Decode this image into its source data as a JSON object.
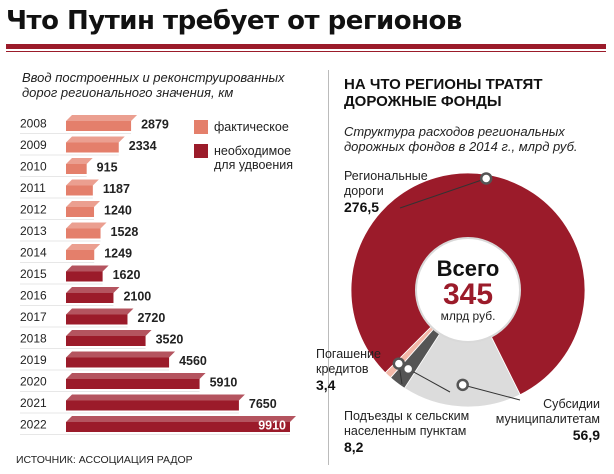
{
  "title": "Что Путин требует от регионов",
  "left": {
    "subtitle_line1": "Ввод построенных и реконструированных",
    "subtitle_line2": "дорог регионального значения, км",
    "legend": {
      "actual": "фактическое",
      "required_line1": "необходимое",
      "required_line2": "для удвоения"
    }
  },
  "right": {
    "heading_line1": "НА ЧТО РЕГИОНЫ ТРАТЯТ",
    "heading_line2": "ДОРОЖНЫЕ ФОНДЫ",
    "subtitle_line1": "Структура расходов региональных",
    "subtitle_line2": "дорожных фондов в 2014 г., млрд руб.",
    "center_label": "Всего",
    "center_value": "345",
    "center_unit": "млрд руб."
  },
  "source": "ИСТОЧНИК: АССОЦИАЦИЯ РАДОР",
  "colors": {
    "actual": "#e47f6b",
    "required": "#9b1b2a",
    "light_gray": "#dcdcdc",
    "dark_gray": "#555555"
  },
  "chart_data": [
    {
      "type": "bar",
      "orientation": "horizontal",
      "categories": [
        "2008",
        "2009",
        "2010",
        "2011",
        "2012",
        "2013",
        "2014",
        "2015",
        "2016",
        "2017",
        "2018",
        "2019",
        "2020",
        "2021",
        "2022"
      ],
      "values": [
        2879,
        2334,
        915,
        1187,
        1240,
        1528,
        1249,
        1620,
        2100,
        2720,
        3520,
        4560,
        5910,
        7650,
        9910
      ],
      "labels": [
        "2879",
        "2334",
        "915",
        "1187",
        "1240",
        "1528",
        "1249",
        "1620",
        "2100",
        "2720",
        "3520",
        "4560",
        "5910",
        "7650",
        "9910"
      ],
      "kind": [
        "actual",
        "actual",
        "actual",
        "actual",
        "actual",
        "actual",
        "actual",
        "required",
        "required",
        "required",
        "required",
        "required",
        "required",
        "required",
        "required"
      ],
      "legend_placement": "top-right"
    },
    {
      "type": "pie",
      "slices": [
        {
          "name_line1": "Региональные",
          "name_line2": "дороги",
          "value": 276.5,
          "label": "276,5",
          "color": "#9b1b2a"
        },
        {
          "name_line1": "Субсидии",
          "name_line2": "муниципалитетам",
          "value": 56.9,
          "label": "56,9",
          "color": "#dcdcdc"
        },
        {
          "name_line1": "Подъезды к сельским",
          "name_line2": "населенным пунктам",
          "value": 8.2,
          "label": "8,2",
          "color": "#555555"
        },
        {
          "name_line1": "Погашение",
          "name_line2": "кредитов",
          "value": 3.4,
          "label": "3,4",
          "color": "#f2b8a8"
        }
      ],
      "total": 345
    }
  ]
}
